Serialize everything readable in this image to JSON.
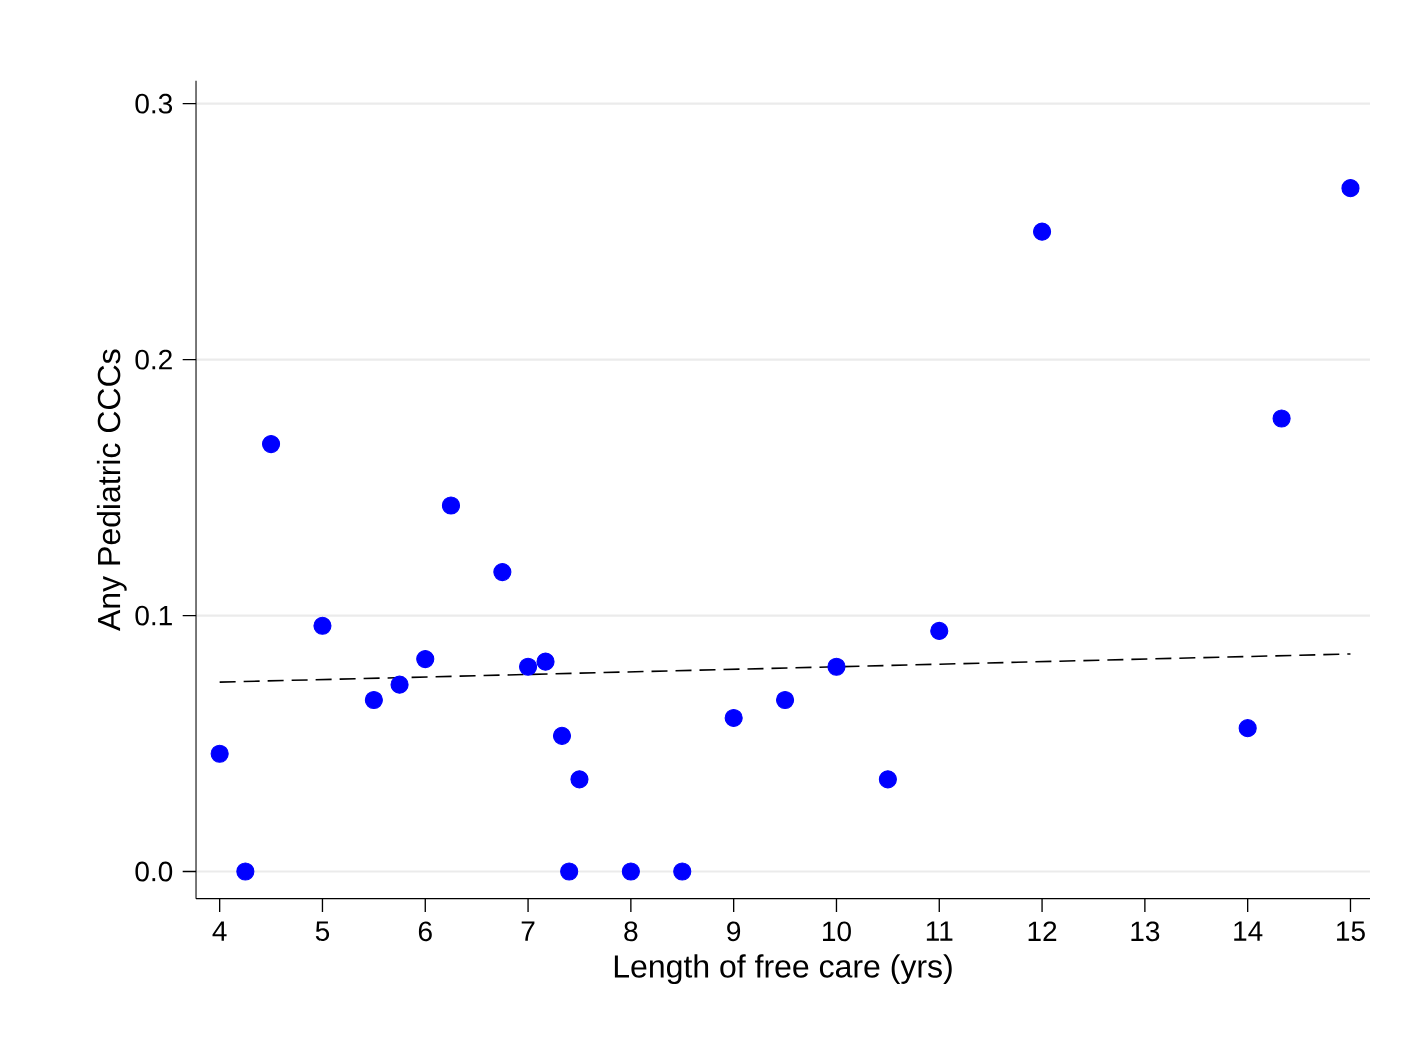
{
  "chart_data": {
    "type": "scatter",
    "xlabel": "Length of free care (yrs)",
    "ylabel": "Any Pediatric CCCs",
    "xlim": [
      3.77,
      15.19
    ],
    "ylim": [
      -0.0106,
      0.309
    ],
    "xticks": [
      4,
      5,
      6,
      7,
      8,
      9,
      10,
      11,
      12,
      13,
      14,
      15
    ],
    "yticks": [
      {
        "value": 0,
        "label": "0.0"
      },
      {
        "value": 0.1,
        "label": "0.1"
      },
      {
        "value": 0.2,
        "label": "0.2"
      },
      {
        "value": 0.3,
        "label": "0.3"
      }
    ],
    "grid": "y",
    "marker": "circle",
    "series": [
      {
        "type": "scatter",
        "color": "#0000ff",
        "x": [
          4,
          4.25,
          4.5,
          5,
          5.5,
          5.75,
          6,
          6.25,
          6.75,
          7,
          7.17,
          7.33,
          7.4,
          7.5,
          8,
          8.5,
          9,
          9.5,
          10,
          10.5,
          11,
          12,
          14,
          14.33,
          15
        ],
        "values": [
          0.046,
          0,
          0.167,
          0.096,
          0.067,
          0.073,
          0.083,
          0.143,
          0.117,
          0.08,
          0.082,
          0.053,
          0,
          0.036,
          0,
          0,
          0.06,
          0.067,
          0.08,
          0.036,
          0.094,
          0.25,
          0.056,
          0.177,
          0.267
        ]
      },
      {
        "type": "line",
        "color": "#000000",
        "line_style": "dashed",
        "marker": "none",
        "x": [
          4,
          15
        ],
        "values": [
          0.074,
          0.085
        ]
      }
    ]
  }
}
